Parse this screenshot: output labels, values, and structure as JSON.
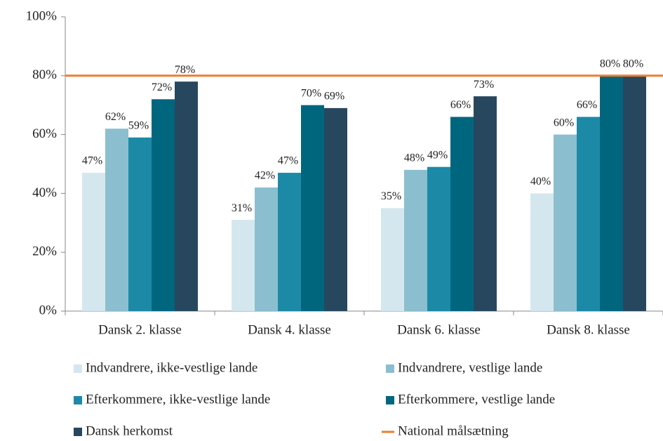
{
  "chart_data": {
    "type": "bar",
    "categories": [
      "Dansk 2. klasse",
      "Dansk 4. klasse",
      "Dansk 6. klasse",
      "Dansk 8. klasse"
    ],
    "series": [
      {
        "name": "Indvandrere, ikke-vestlige lande",
        "color": "#d5e7ee",
        "values": [
          47,
          31,
          35,
          40
        ],
        "value_labels": [
          "47%",
          "31%",
          "35%",
          "40%"
        ]
      },
      {
        "name": "Indvandrere, vestlige lande",
        "color": "#8bbfcf",
        "values": [
          62,
          42,
          48,
          60
        ],
        "value_labels": [
          "62%",
          "42%",
          "48%",
          "60%"
        ]
      },
      {
        "name": "Efterkommere, ikke-vestlige lande",
        "color": "#1c8aa7",
        "values": [
          59,
          47,
          49,
          66
        ],
        "value_labels": [
          "59%",
          "47%",
          "49%",
          "66%"
        ]
      },
      {
        "name": "Efterkommere, vestlige lande",
        "color": "#00667e",
        "values": [
          72,
          70,
          66,
          80
        ],
        "value_labels": [
          "72%",
          "70%",
          "66%",
          "80%"
        ]
      },
      {
        "name": "Dansk herkomst",
        "color": "#27475e",
        "values": [
          78,
          69,
          73,
          80
        ],
        "value_labels": [
          "78%",
          "69%",
          "73%",
          "80%"
        ]
      }
    ],
    "reference_line": {
      "name": "National målsætning",
      "value": 80,
      "color": "#ed7d31"
    },
    "ylim": [
      0,
      100
    ],
    "yticks": [
      {
        "value": 0,
        "label": "0%"
      },
      {
        "value": 20,
        "label": "20%"
      },
      {
        "value": 40,
        "label": "40%"
      },
      {
        "value": 60,
        "label": "60%"
      },
      {
        "value": 80,
        "label": "80%"
      },
      {
        "value": 100,
        "label": "100%"
      }
    ],
    "legend": "bottom"
  }
}
